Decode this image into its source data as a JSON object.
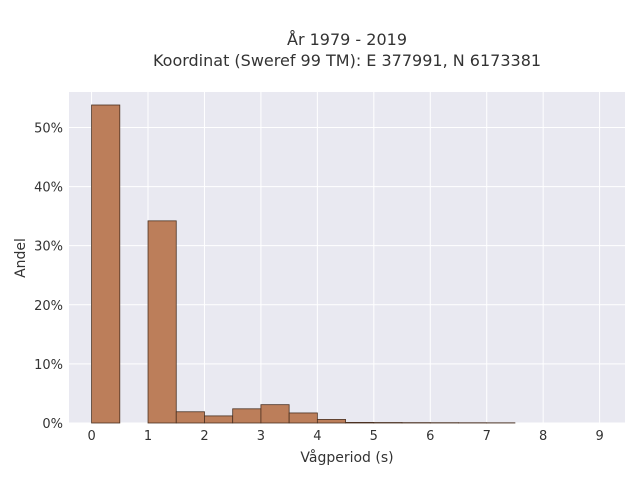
{
  "chart_data": {
    "type": "bar",
    "title_line1": "År 1979 - 2019",
    "title_line2": "Koordinat (Sweref 99 TM): E 377991, N 6173381",
    "xlabel": "Vågperiod (s)",
    "ylabel": "Andel",
    "x_ticks": [
      "0",
      "1",
      "2",
      "3",
      "4",
      "5",
      "6",
      "7",
      "8",
      "9"
    ],
    "y_ticks": [
      "0%",
      "10%",
      "20%",
      "30%",
      "40%",
      "50%"
    ],
    "xlim": [
      -0.4,
      9.45
    ],
    "ylim": [
      0,
      56
    ],
    "grid": true,
    "bin_width": 0.5,
    "bars": [
      {
        "x0": 0.0,
        "value": 53.8
      },
      {
        "x0": 1.0,
        "value": 34.2
      },
      {
        "x0": 1.5,
        "value": 1.9
      },
      {
        "x0": 2.0,
        "value": 1.2
      },
      {
        "x0": 2.5,
        "value": 2.4
      },
      {
        "x0": 3.0,
        "value": 3.1
      },
      {
        "x0": 3.5,
        "value": 1.7
      },
      {
        "x0": 4.0,
        "value": 0.6
      },
      {
        "x0": 4.5,
        "value": 0.1
      },
      {
        "x0": 5.0,
        "value": 0.08
      },
      {
        "x0": 5.5,
        "value": 0.06
      },
      {
        "x0": 6.0,
        "value": 0.05
      },
      {
        "x0": 6.5,
        "value": 0.04
      },
      {
        "x0": 7.0,
        "value": 0.03
      }
    ],
    "colors": {
      "bar_fill": "#bc7e5a",
      "bar_stroke": "#4a3020",
      "plot_bg": "#e9e9f1",
      "grid": "#ffffff"
    }
  }
}
